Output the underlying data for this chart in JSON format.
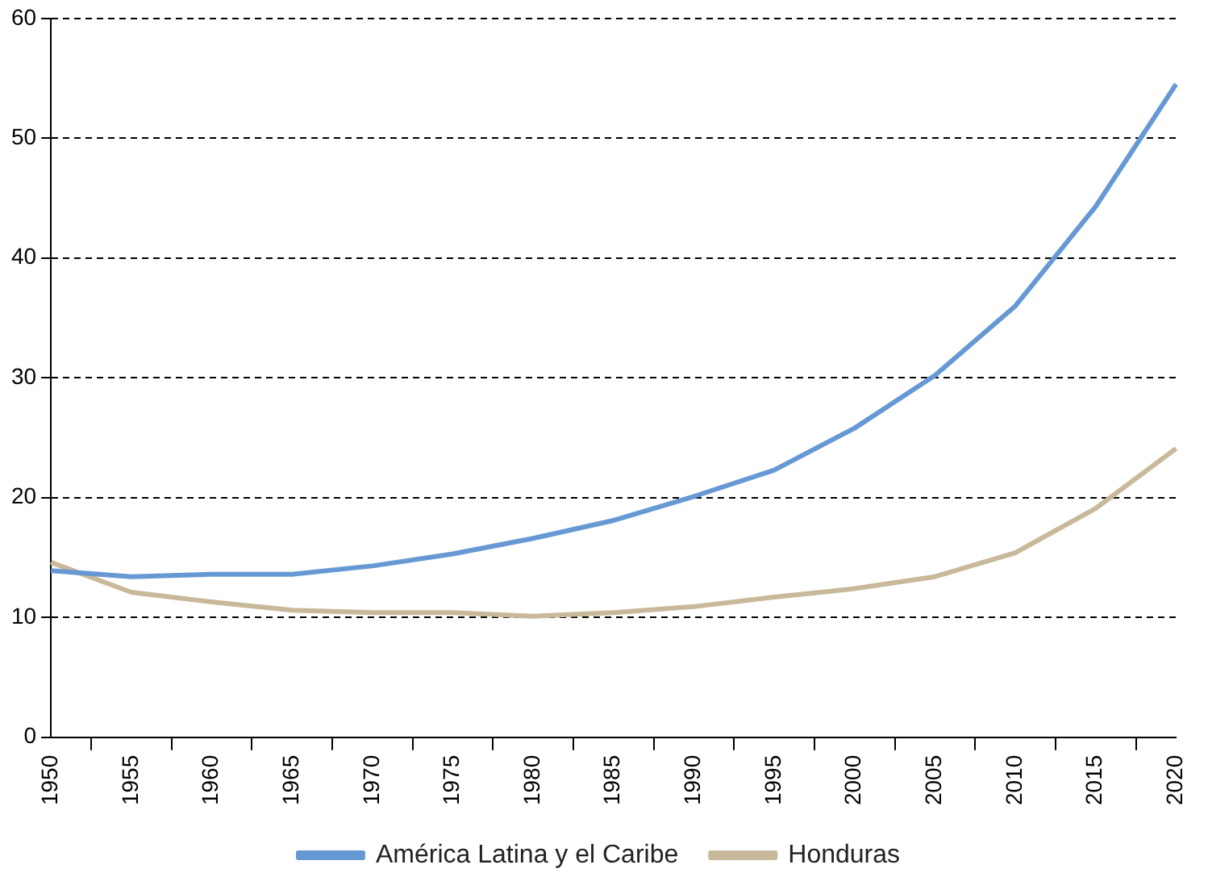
{
  "chart_data": {
    "type": "line",
    "categories": [
      "1950",
      "1955",
      "1960",
      "1965",
      "1970",
      "1975",
      "1980",
      "1985",
      "1990",
      "1995",
      "2000",
      "2005",
      "2010",
      "2015",
      "2020"
    ],
    "series": [
      {
        "name": "América Latina y el Caribe",
        "color": "#6699d3",
        "values": [
          13.9,
          13.4,
          13.6,
          13.6,
          14.3,
          15.3,
          16.6,
          18.1,
          20.1,
          22.3,
          25.8,
          30.2,
          36.0,
          44.3,
          54.5
        ]
      },
      {
        "name": "Honduras",
        "color": "#c9b99b",
        "values": [
          14.6,
          12.1,
          11.3,
          10.6,
          10.4,
          10.4,
          10.1,
          10.4,
          10.9,
          11.7,
          12.4,
          13.4,
          15.4,
          19.1,
          24.1
        ]
      }
    ],
    "ylim": [
      0,
      60
    ],
    "yticks": [
      0,
      10,
      20,
      30,
      40,
      50,
      60
    ],
    "grid": "y",
    "legend": "bottom",
    "marker": "none",
    "line_style": "solid"
  }
}
